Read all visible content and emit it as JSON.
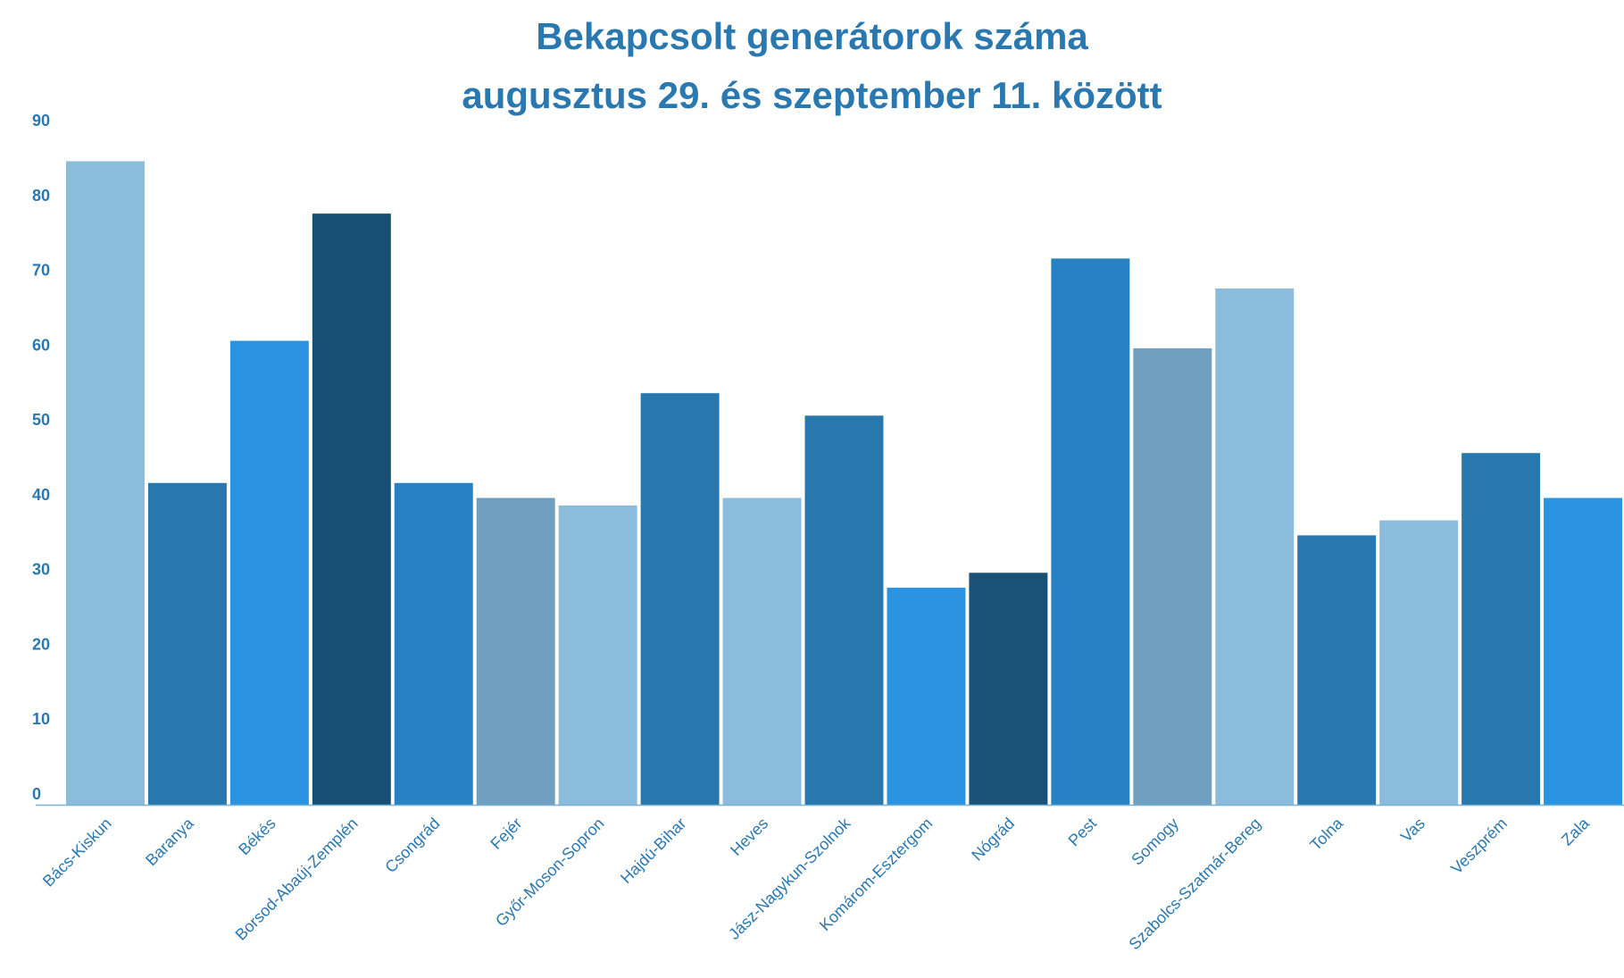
{
  "chart_data": {
    "type": "bar",
    "title_lines": [
      "Bekapcsolt generátorok száma",
      "augusztus 29. és szeptember 11. között"
    ],
    "xlabel": "",
    "ylabel": "",
    "ylim": [
      0,
      90
    ],
    "yticks": [
      0,
      10,
      20,
      30,
      40,
      50,
      60,
      70,
      80,
      90
    ],
    "grid": false,
    "legend": "none",
    "categories": [
      "Bács-Kiskun",
      "Baranya",
      "Békés",
      "Borsod-Abaúj-Zemplén",
      "Csongrád",
      "Fejér",
      "Győr-Moson-Sopron",
      "Hajdú-Bihar",
      "Heves",
      "Jász-Nagykun-Szolnok",
      "Komárom-Esztergom",
      "Nógrád",
      "Pest",
      "Somogy",
      "Szabolcs-Szatmár-Bereg",
      "Tolna",
      "Vas",
      "Veszprém",
      "Zala"
    ],
    "values": [
      86,
      43,
      62,
      79,
      43,
      41,
      40,
      55,
      41,
      52,
      29,
      31,
      73,
      61,
      69,
      36,
      38,
      47,
      41
    ],
    "colors": [
      "#8bbcdc",
      "#2878ae",
      "#2a94e2",
      "#174f74",
      "#2682c2",
      "#719fc0",
      "#8bbcdc",
      "#2878ae",
      "#8bbcdc",
      "#2878ae",
      "#2a94e2",
      "#1a5177",
      "#2682c2",
      "#719fc0",
      "#8bbcdc",
      "#2878ae",
      "#8bbcdc",
      "#2878ae",
      "#2a94e2"
    ],
    "axis_color": "#7aaed3"
  }
}
